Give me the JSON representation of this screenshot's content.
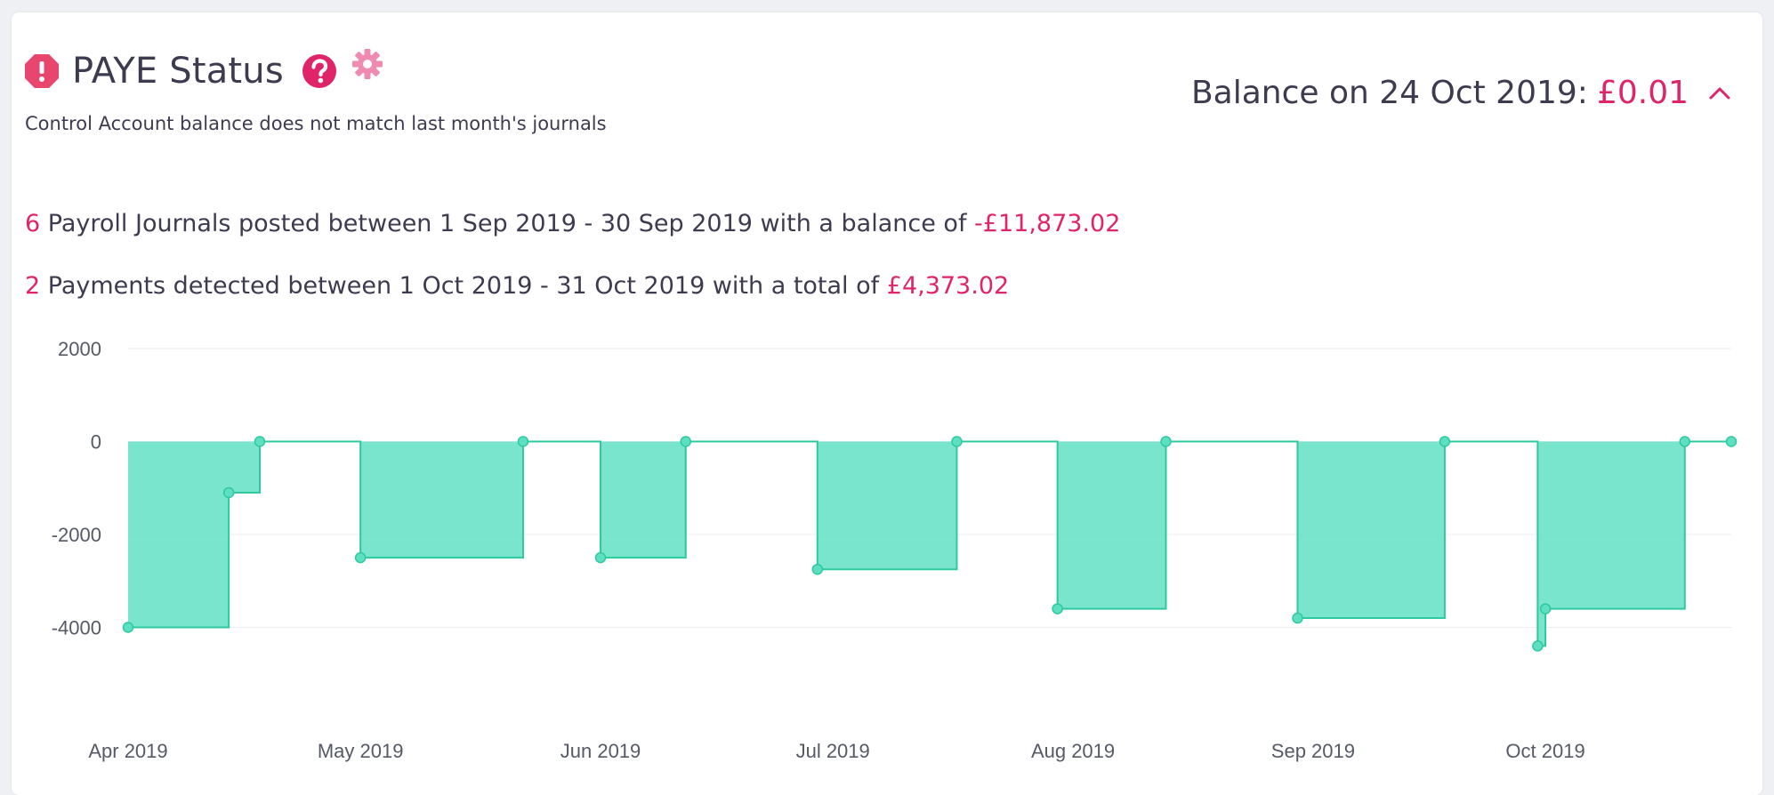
{
  "header": {
    "title": "PAYE Status",
    "subtitle": "Control Account balance does not match last month's journals"
  },
  "balance": {
    "label": "Balance on 24 Oct 2019:",
    "amount": "£0.01"
  },
  "summary": {
    "journals": {
      "count": "6",
      "text": "Payroll Journals posted between 1 Sep 2019 - 30 Sep 2019 with a balance of",
      "amount": "-£11,873.02"
    },
    "payments": {
      "count": "2",
      "text": "Payments detected between 1 Oct 2019 - 31 Oct 2019 with a total of",
      "amount": "£4,373.02"
    }
  },
  "colors": {
    "accent": "#e0246a",
    "series_line": "#2ec99e",
    "series_fill": "#5ddfc2"
  },
  "icons": [
    "alert-octagon-icon",
    "help-circle-icon",
    "gear-icon",
    "chevron-up-icon"
  ],
  "chart_data": {
    "type": "area",
    "step": true,
    "xlabel": "",
    "ylabel": "",
    "ylim": [
      -6000,
      2000
    ],
    "yticks": [
      2000,
      0,
      -2000,
      -4000
    ],
    "xticks": [
      "Apr 2019",
      "May 2019",
      "Jun 2019",
      "Jul 2019",
      "Aug 2019",
      "Sep 2019",
      "Oct 2019"
    ],
    "grid": true,
    "points": [
      {
        "date": "2019-04-01",
        "value": -4000
      },
      {
        "date": "2019-04-14",
        "value": -1100
      },
      {
        "date": "2019-04-18",
        "value": 0
      },
      {
        "date": "2019-05-01",
        "value": -2500
      },
      {
        "date": "2019-05-22",
        "value": 0
      },
      {
        "date": "2019-06-01",
        "value": -2500
      },
      {
        "date": "2019-06-12",
        "value": 0
      },
      {
        "date": "2019-06-29",
        "value": -2750
      },
      {
        "date": "2019-07-17",
        "value": 0
      },
      {
        "date": "2019-07-30",
        "value": -3600
      },
      {
        "date": "2019-08-13",
        "value": 0
      },
      {
        "date": "2019-08-30",
        "value": -3800
      },
      {
        "date": "2019-09-18",
        "value": 0
      },
      {
        "date": "2019-09-30",
        "value": -4400
      },
      {
        "date": "2019-10-01",
        "value": -3600
      },
      {
        "date": "2019-10-19",
        "value": 0
      },
      {
        "date": "2019-10-25",
        "value": 0
      }
    ]
  }
}
